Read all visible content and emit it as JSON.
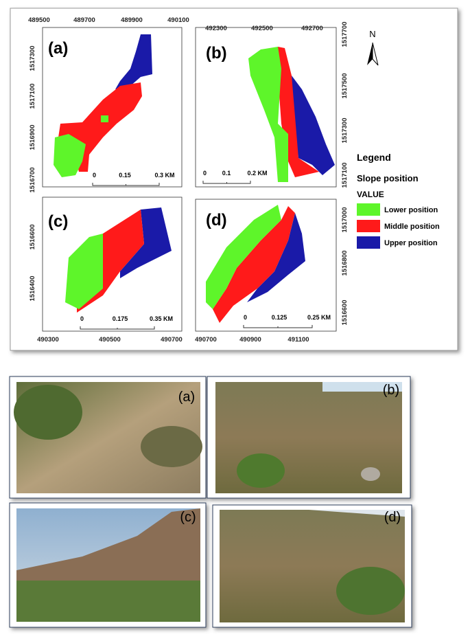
{
  "maps": [
    {
      "label": "(a)",
      "x_ticks": [
        "489500",
        "489700",
        "489900",
        "490100"
      ],
      "y_ticks": [
        "1516700",
        "1516900",
        "1517100",
        "1517300"
      ],
      "scale": [
        "0",
        "0.15",
        "0.3 KM"
      ]
    },
    {
      "label": "(b)",
      "x_ticks": [
        "492300",
        "492500",
        "492700"
      ],
      "y_ticks": [
        "1517700",
        "1517500",
        "1517300",
        "1517100"
      ],
      "scale": [
        "0",
        "0.1",
        "0.2 KM"
      ]
    },
    {
      "label": "(c)",
      "x_ticks": [
        "490300",
        "490500",
        "490700"
      ],
      "y_ticks": [
        "1516600",
        "1516400"
      ],
      "scale": [
        "0",
        "0.175",
        "0.35 KM"
      ]
    },
    {
      "label": "(d)",
      "x_ticks": [
        "490700",
        "490900",
        "491100"
      ],
      "y_ticks": [
        "1517000",
        "1516800",
        "1516600"
      ],
      "scale": [
        "0",
        "0.125",
        "0.25 KM"
      ]
    }
  ],
  "north": "N",
  "legend": {
    "title": "Legend",
    "subtitle": "Slope position",
    "field": "VALUE",
    "items": [
      "Lower position",
      "Middle position",
      "Upper position"
    ]
  },
  "photos": [
    "(a)",
    "(b)",
    "(c)",
    "(d)"
  ]
}
